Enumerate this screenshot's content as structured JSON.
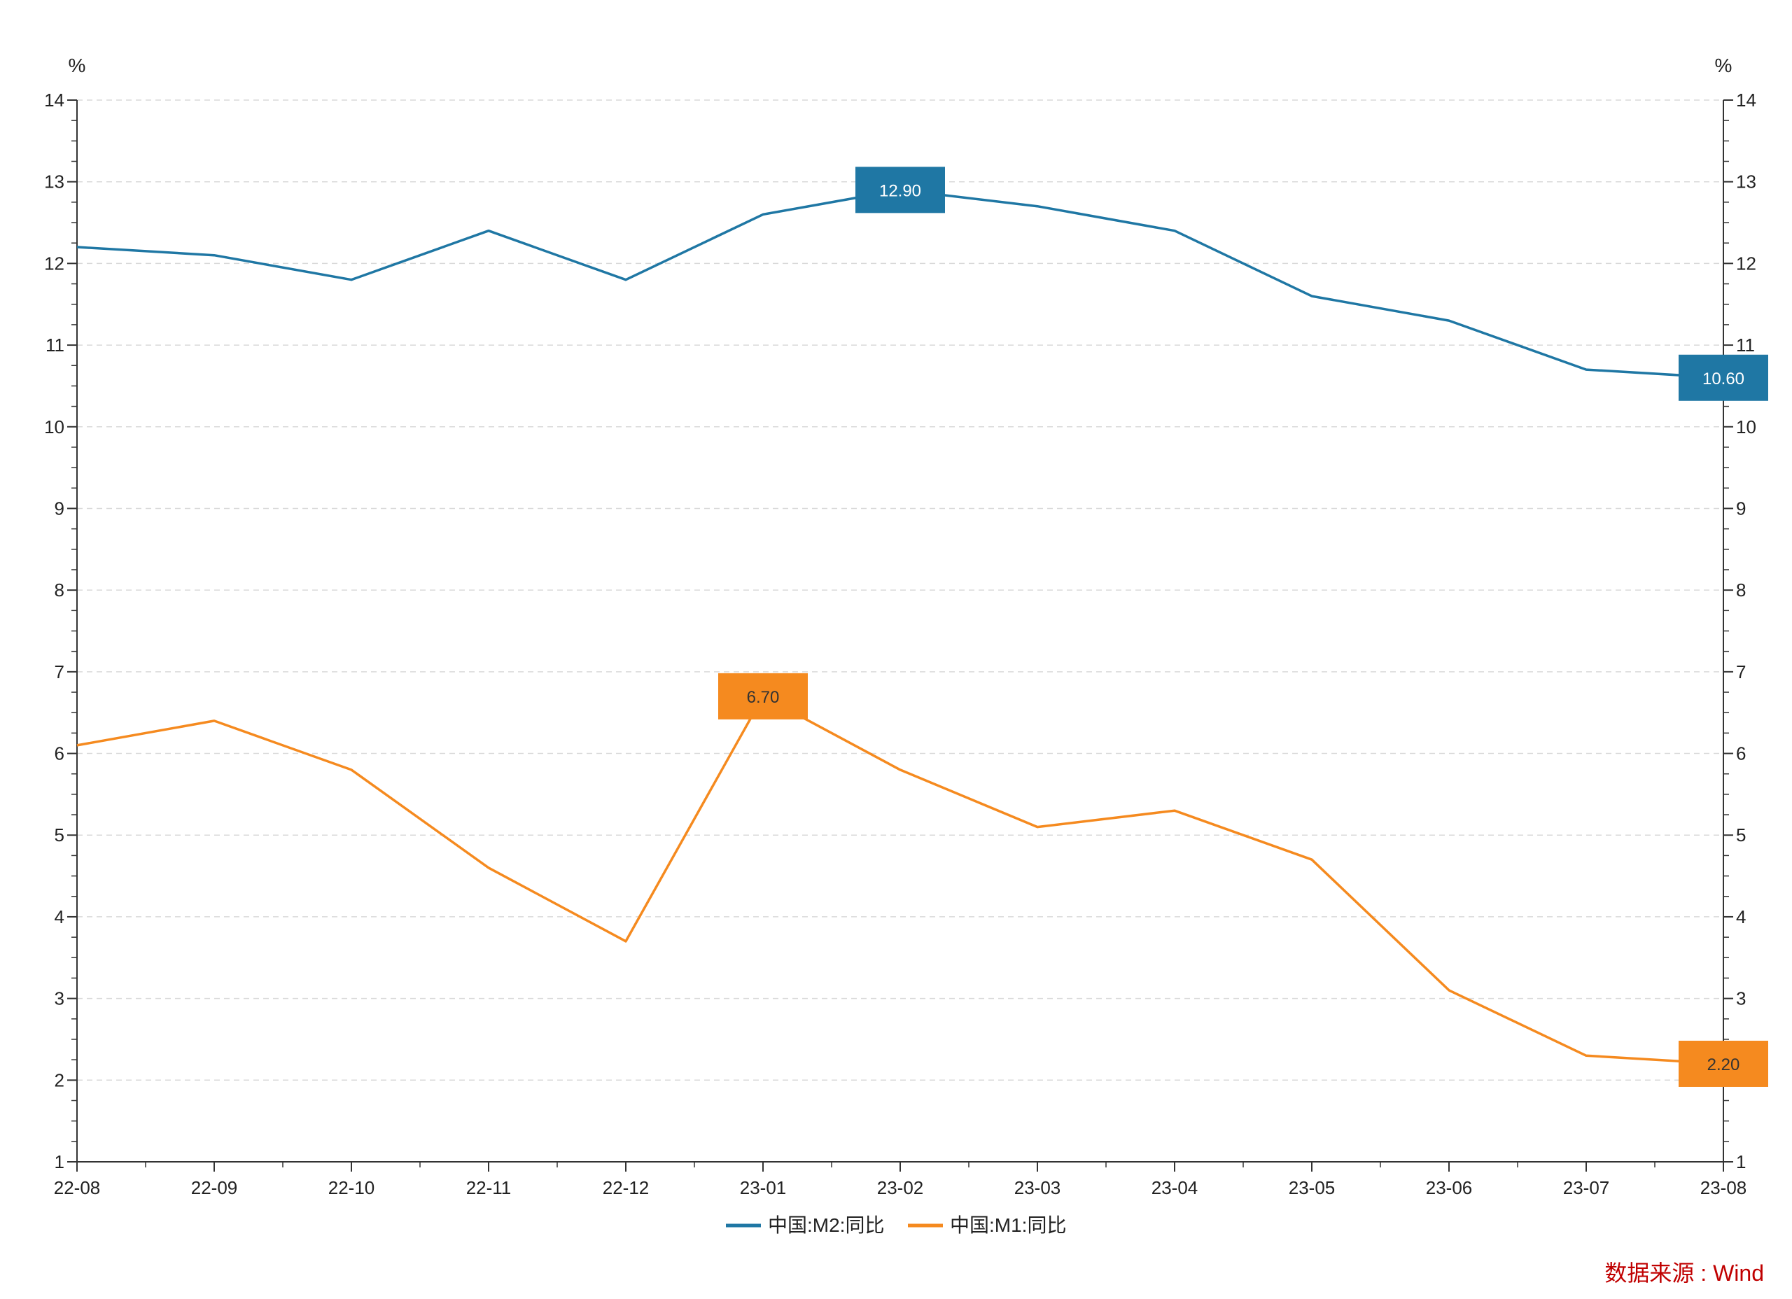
{
  "chart_data": {
    "type": "line",
    "categories": [
      "22-08",
      "22-09",
      "22-10",
      "22-11",
      "22-12",
      "23-01",
      "23-02",
      "23-03",
      "23-04",
      "23-05",
      "23-06",
      "23-07",
      "23-08"
    ],
    "series": [
      {
        "name": "中国:M2:同比",
        "color": "#1f77a4",
        "values": [
          12.2,
          12.1,
          11.8,
          12.4,
          11.8,
          12.6,
          12.9,
          12.7,
          12.4,
          11.6,
          11.3,
          10.7,
          10.6
        ]
      },
      {
        "name": "中国:M1:同比",
        "color": "#f58a1f",
        "values": [
          6.1,
          6.4,
          5.8,
          4.6,
          3.7,
          6.7,
          5.8,
          5.1,
          5.3,
          4.7,
          3.1,
          2.3,
          2.2
        ]
      }
    ],
    "ylim": [
      1,
      14
    ],
    "yticks": [
      "1",
      "2",
      "3",
      "4",
      "5",
      "6",
      "7",
      "8",
      "9",
      "10",
      "11",
      "12",
      "13",
      "14"
    ],
    "ylabel_left": "%",
    "ylabel_right": "%",
    "grid": true,
    "legend_position": "bottom-center",
    "callouts": [
      {
        "series": 0,
        "index": 6,
        "text": "12.90"
      },
      {
        "series": 0,
        "index": 12,
        "text": "10.60"
      },
      {
        "series": 1,
        "index": 5,
        "text": "6.70"
      },
      {
        "series": 1,
        "index": 12,
        "text": "2.20"
      }
    ]
  },
  "source_text": "数据来源 : Wind"
}
